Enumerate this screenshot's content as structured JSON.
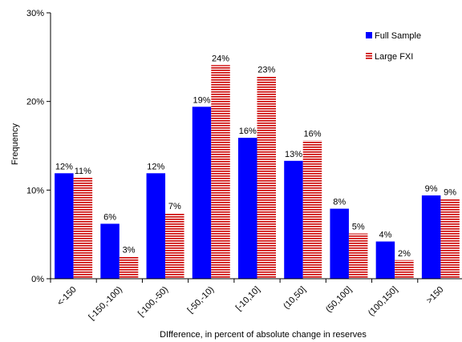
{
  "chart_data": {
    "type": "bar",
    "title": "",
    "xlabel": "DIfference, in percent of absolute change in reserves",
    "ylabel": "Frequency",
    "ylim": [
      0,
      30
    ],
    "yticks": [
      "0%",
      "10%",
      "20%",
      "30%"
    ],
    "categories": [
      "<-150",
      "[-150,-100)",
      "[-100,-50)",
      "[-50,-10)",
      "[-10,10]",
      "(10,50]",
      "(50,100]",
      "(100,150]",
      ">150"
    ],
    "series": [
      {
        "name": "Full Sample",
        "color": "#0000ff",
        "values": [
          11.9,
          6.2,
          11.9,
          19.4,
          15.9,
          13.3,
          7.9,
          4.2,
          9.4
        ],
        "labels": [
          "12%",
          "6%",
          "12%",
          "19%",
          "16%",
          "13%",
          "8%",
          "4%",
          "9%"
        ]
      },
      {
        "name": "Large FXI",
        "color": "#cc0000",
        "pattern": "horizontal-stripes",
        "values": [
          11.4,
          2.5,
          7.4,
          24.1,
          22.8,
          15.6,
          5.1,
          2.1,
          9.0
        ],
        "labels": [
          "11%",
          "3%",
          "7%",
          "24%",
          "23%",
          "16%",
          "5%",
          "2%",
          "9%"
        ]
      }
    ],
    "legend_position": "top-right",
    "grid": false
  }
}
